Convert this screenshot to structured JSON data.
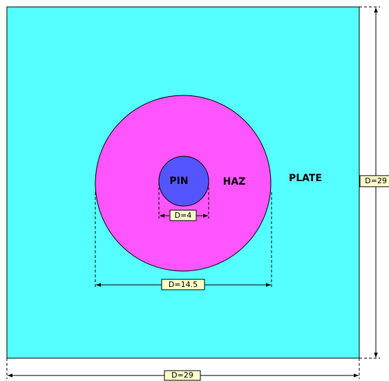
{
  "regions": {
    "pin": "PIN",
    "haz": "HAZ",
    "plate": "PLATE"
  },
  "dimensions": {
    "pin_diameter": "D=4",
    "haz_diameter": "D=14.5",
    "plate_height": "D=29",
    "plate_width": "D=29"
  }
}
